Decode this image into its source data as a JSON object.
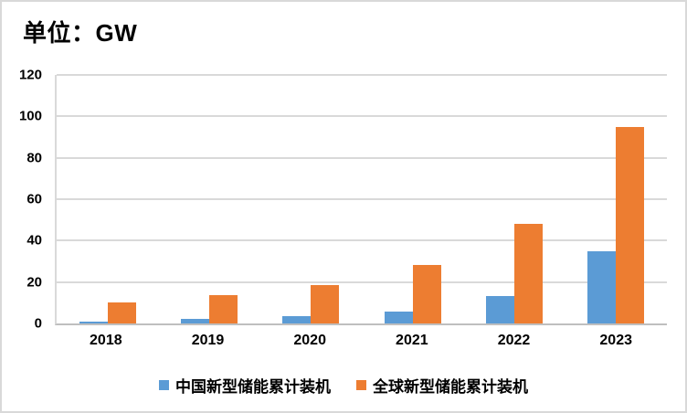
{
  "chart_data": {
    "type": "bar",
    "title": "单位：GW",
    "categories": [
      "2018",
      "2019",
      "2020",
      "2021",
      "2022",
      "2023"
    ],
    "series": [
      {
        "name": "中国新型储能累计装机",
        "color": "#5B9BD5",
        "values": [
          1.1,
          2.0,
          3.4,
          5.8,
          13.2,
          35
        ]
      },
      {
        "name": "全球新型储能累计装机",
        "color": "#ED7D31",
        "values": [
          10,
          13.7,
          18.5,
          28.3,
          48.3,
          95
        ]
      }
    ],
    "ylim": [
      0,
      120
    ],
    "yticks": [
      0,
      20,
      40,
      60,
      80,
      100,
      120
    ],
    "grid": true,
    "legend_position": "bottom"
  },
  "colors": {
    "china_series": "#5B9BD5",
    "global_series": "#ED7D31",
    "gridline": "#D9D9D9",
    "axis_line": "#BFBFBF",
    "frame_border": "#D9D9D9",
    "text": "#000000",
    "background": "#FFFFFF"
  }
}
